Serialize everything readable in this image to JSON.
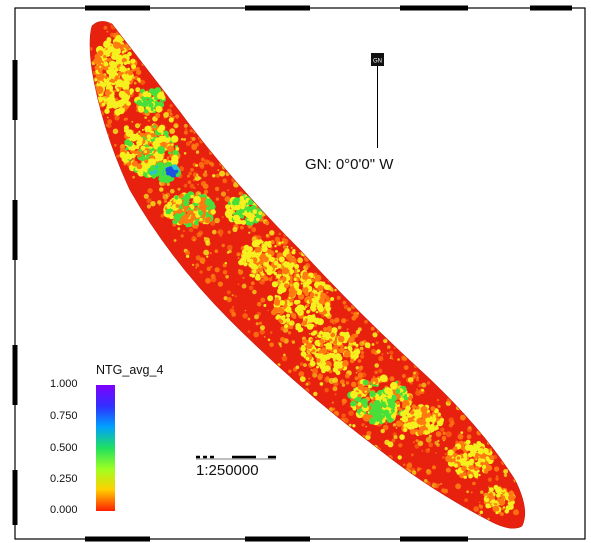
{
  "north_arrow": {
    "badge": "GN",
    "label": "GN: 0°0'0\" W"
  },
  "legend": {
    "title": "NTG_avg_4",
    "ticks": [
      "1.000",
      "0.750",
      "0.500",
      "0.250",
      "0.000"
    ],
    "colors": [
      "#8000ff",
      "#0060ff",
      "#00c8ff",
      "#40ff40",
      "#ffff00",
      "#ff8000",
      "#ff2000"
    ]
  },
  "scale_bar": {
    "label": "1:250000"
  },
  "colors": {
    "background": "#ffffff",
    "frame": "#000000",
    "base_red": "#e8210f",
    "orange": "#ff7a10",
    "yellow": "#f5f01e",
    "green": "#47e03a",
    "cyan": "#22c6d4",
    "blue": "#1c52e0"
  }
}
